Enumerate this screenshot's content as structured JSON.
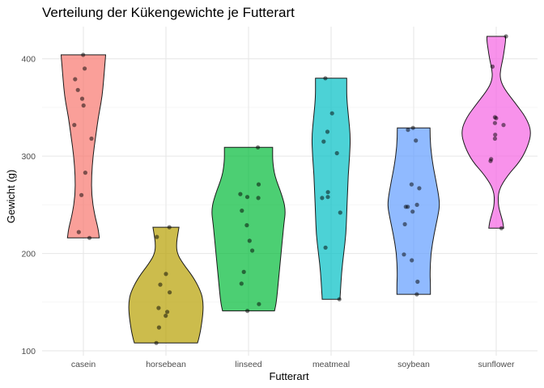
{
  "chart_data": {
    "type": "violin",
    "title": "Verteilung der Kükengewichte je Futterart",
    "xlabel": "Futterart",
    "ylabel": "Gewicht (g)",
    "ylim": [
      95,
      433
    ],
    "yticks": [
      100,
      200,
      300,
      400
    ],
    "grid": true,
    "legend": "none",
    "categories": [
      "casein",
      "horsebean",
      "linseed",
      "meatmeal",
      "soybean",
      "sunflower"
    ],
    "colors": [
      "#F8766D",
      "#B79F00",
      "#00BA38",
      "#00BFC4",
      "#619CFF",
      "#F564E3"
    ],
    "groups": [
      {
        "name": "casein",
        "min": 216,
        "max": 404,
        "density": [
          [
            216,
            0.43
          ],
          [
            225,
            0.4
          ],
          [
            240,
            0.3
          ],
          [
            260,
            0.22
          ],
          [
            280,
            0.22
          ],
          [
            300,
            0.26
          ],
          [
            320,
            0.33
          ],
          [
            340,
            0.4
          ],
          [
            360,
            0.5
          ],
          [
            380,
            0.55
          ],
          [
            395,
            0.58
          ],
          [
            404,
            0.6
          ]
        ],
        "points": [
          404,
          390,
          379,
          368,
          359,
          352,
          332,
          318,
          283,
          260,
          222,
          216
        ]
      },
      {
        "name": "horsebean",
        "min": 108,
        "max": 227,
        "density": [
          [
            108,
            0.85
          ],
          [
            115,
            0.9
          ],
          [
            125,
            0.95
          ],
          [
            140,
            1.0
          ],
          [
            150,
            1.0
          ],
          [
            160,
            0.95
          ],
          [
            175,
            0.75
          ],
          [
            190,
            0.45
          ],
          [
            200,
            0.3
          ],
          [
            210,
            0.28
          ],
          [
            220,
            0.32
          ],
          [
            227,
            0.35
          ]
        ],
        "points": [
          227,
          217,
          179,
          168,
          160,
          144,
          140,
          136,
          124,
          108
        ]
      },
      {
        "name": "linseed",
        "min": 141,
        "max": 309,
        "density": [
          [
            141,
            0.7
          ],
          [
            150,
            0.75
          ],
          [
            170,
            0.8
          ],
          [
            190,
            0.85
          ],
          [
            210,
            0.9
          ],
          [
            230,
            0.95
          ],
          [
            245,
            1.0
          ],
          [
            260,
            0.9
          ],
          [
            280,
            0.7
          ],
          [
            295,
            0.65
          ],
          [
            305,
            0.65
          ],
          [
            309,
            0.65
          ]
        ],
        "points": [
          309,
          271,
          261,
          258,
          257,
          244,
          229,
          213,
          203,
          181,
          169,
          148,
          141
        ]
      },
      {
        "name": "meatmeal",
        "min": 153,
        "max": 380,
        "density": [
          [
            153,
            0.24
          ],
          [
            160,
            0.25
          ],
          [
            180,
            0.28
          ],
          [
            200,
            0.34
          ],
          [
            220,
            0.4
          ],
          [
            240,
            0.42
          ],
          [
            260,
            0.44
          ],
          [
            280,
            0.46
          ],
          [
            300,
            0.5
          ],
          [
            320,
            0.52
          ],
          [
            340,
            0.47
          ],
          [
            360,
            0.42
          ],
          [
            375,
            0.42
          ],
          [
            380,
            0.42
          ]
        ],
        "points": [
          380,
          344,
          325,
          315,
          303,
          263,
          258,
          257,
          242,
          206,
          153
        ]
      },
      {
        "name": "soybean",
        "min": 158,
        "max": 329,
        "density": [
          [
            158,
            0.45
          ],
          [
            170,
            0.45
          ],
          [
            180,
            0.44
          ],
          [
            200,
            0.46
          ],
          [
            220,
            0.55
          ],
          [
            240,
            0.66
          ],
          [
            250,
            0.7
          ],
          [
            260,
            0.67
          ],
          [
            275,
            0.6
          ],
          [
            290,
            0.52
          ],
          [
            310,
            0.45
          ],
          [
            329,
            0.44
          ]
        ],
        "points": [
          329,
          327,
          316,
          271,
          267,
          250,
          248,
          248,
          243,
          230,
          199,
          193,
          171,
          158
        ]
      },
      {
        "name": "sunflower",
        "min": 226,
        "max": 423,
        "density": [
          [
            226,
            0.2
          ],
          [
            232,
            0.18
          ],
          [
            240,
            0.12
          ],
          [
            250,
            0.05
          ],
          [
            265,
            0.06
          ],
          [
            280,
            0.3
          ],
          [
            295,
            0.65
          ],
          [
            310,
            0.85
          ],
          [
            325,
            0.95
          ],
          [
            340,
            0.8
          ],
          [
            355,
            0.5
          ],
          [
            370,
            0.2
          ],
          [
            380,
            0.1
          ],
          [
            390,
            0.12
          ],
          [
            400,
            0.18
          ],
          [
            410,
            0.22
          ],
          [
            418,
            0.25
          ],
          [
            423,
            0.25
          ]
        ],
        "points": [
          423,
          392,
          340,
          339,
          334,
          332,
          322,
          318,
          297,
          295,
          226
        ]
      }
    ]
  }
}
